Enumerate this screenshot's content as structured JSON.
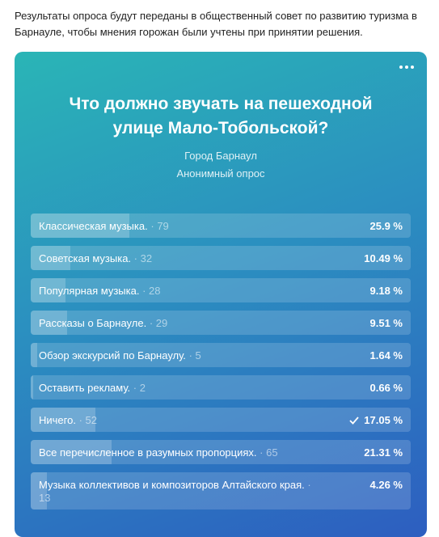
{
  "intro": "Результаты опроса будут переданы в общественный совет по развитию туризма в Барнауле, чтобы мнения горожан были учтены при принятии решения.",
  "poll": {
    "title": "Что должно звучать на пешеходной улице Мало-Тобольской?",
    "subtitle": "Город Барнаул",
    "kind": "Анонимный опрос",
    "separator": "·",
    "options": [
      {
        "label": "Классическая музыка.",
        "count": 79,
        "percent": 25.9,
        "percent_label": "25.9 %",
        "voted": false
      },
      {
        "label": "Советская музыка.",
        "count": 32,
        "percent": 10.49,
        "percent_label": "10.49 %",
        "voted": false
      },
      {
        "label": "Популярная музыка.",
        "count": 28,
        "percent": 9.18,
        "percent_label": "9.18 %",
        "voted": false
      },
      {
        "label": "Рассказы о Барнауле.",
        "count": 29,
        "percent": 9.51,
        "percent_label": "9.51 %",
        "voted": false
      },
      {
        "label": "Обзор экскурсий по Барнаулу.",
        "count": 5,
        "percent": 1.64,
        "percent_label": "1.64 %",
        "voted": false
      },
      {
        "label": "Оставить рекламу.",
        "count": 2,
        "percent": 0.66,
        "percent_label": "0.66 %",
        "voted": false
      },
      {
        "label": "Ничего.",
        "count": 52,
        "percent": 17.05,
        "percent_label": "17.05 %",
        "voted": true
      },
      {
        "label": "Все перечисленное в разумных пропорциях.",
        "count": 65,
        "percent": 21.31,
        "percent_label": "21.31 %",
        "voted": false
      },
      {
        "label": "Музыка коллективов и композиторов Алтайского края.",
        "count": 13,
        "percent": 4.26,
        "percent_label": "4.26 %",
        "voted": false
      }
    ]
  }
}
